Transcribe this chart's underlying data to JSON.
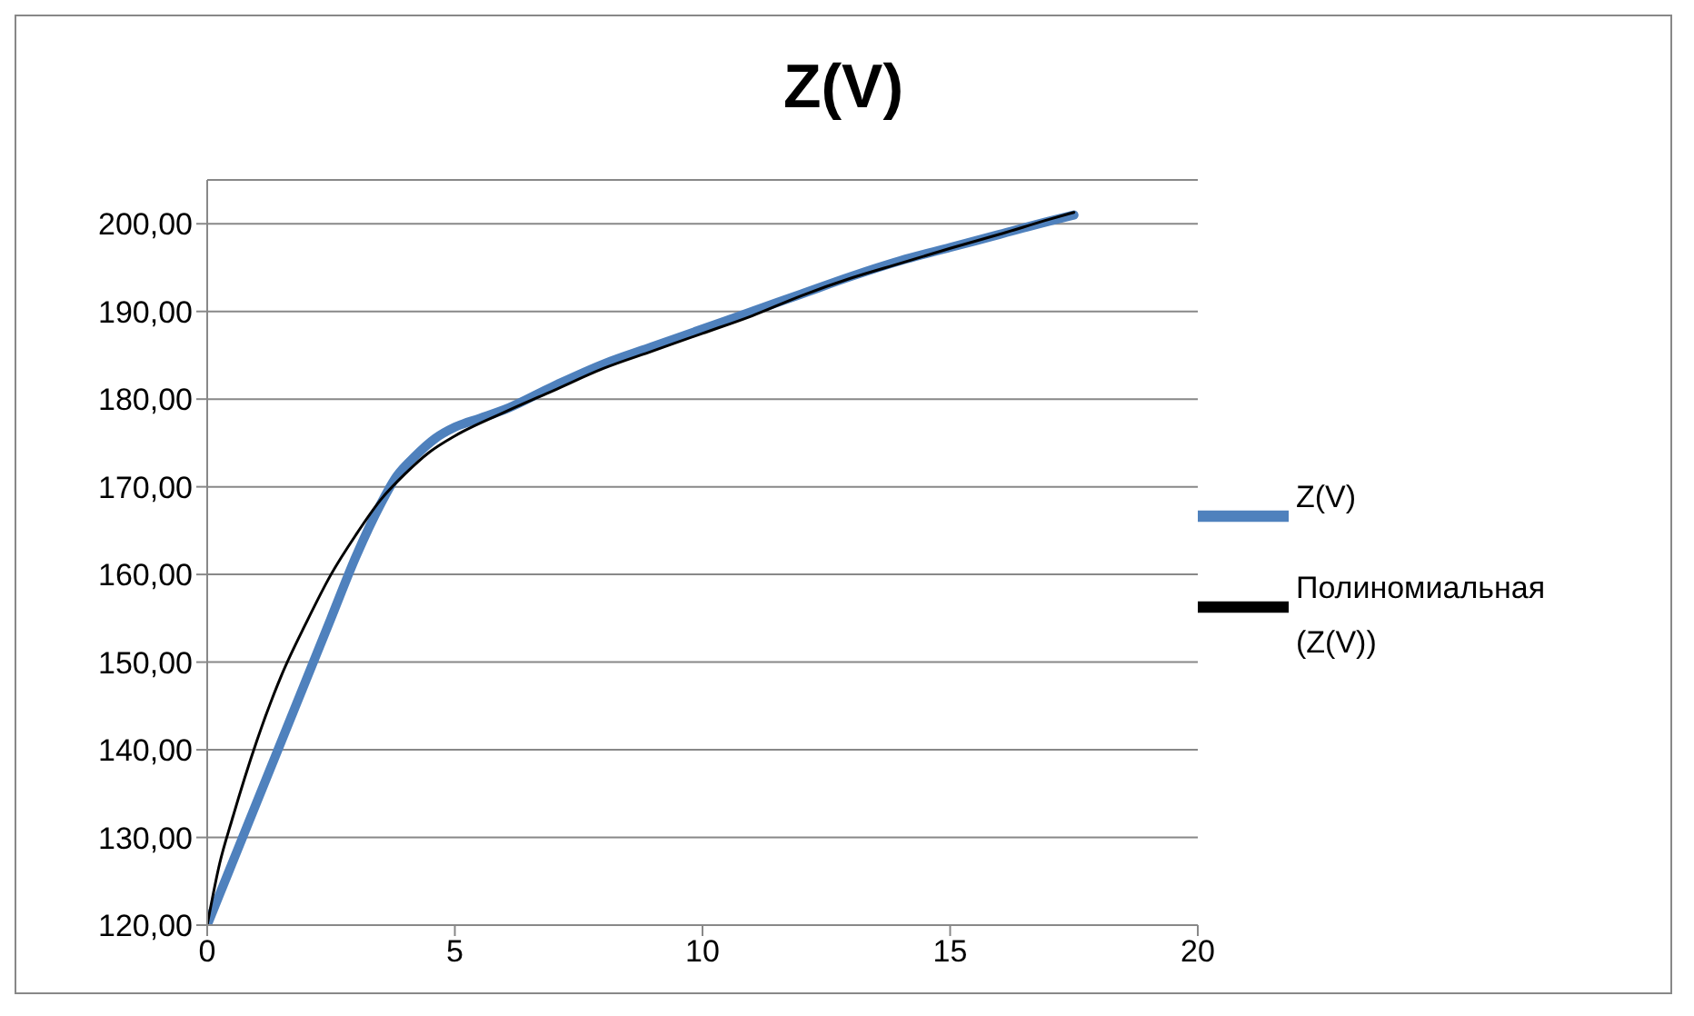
{
  "chart_data": {
    "type": "line",
    "title": "Z(V)",
    "series": [
      {
        "name": "Z(V)",
        "color": "#4f81bd",
        "x": [
          0,
          0.5,
          1,
          1.5,
          2,
          2.5,
          3,
          3.5,
          3.8,
          4.2,
          4.6,
          5,
          5.5,
          6,
          7,
          8,
          9,
          10,
          11,
          12,
          13,
          14,
          15,
          16,
          17,
          17.5
        ],
        "values": [
          120,
          127,
          134,
          141,
          148,
          155,
          162,
          168,
          171,
          173.5,
          175.5,
          176.8,
          177.8,
          178.8,
          181.5,
          184,
          186,
          188,
          190,
          192,
          194,
          195.8,
          197.3,
          198.8,
          200.3,
          201
        ]
      },
      {
        "name": "Полиномиальная (Z(V))",
        "color": "#000000",
        "line_style": "solid",
        "x": [
          0,
          0.25,
          0.5,
          1,
          1.5,
          2,
          2.5,
          3,
          3.5,
          4,
          4.5,
          5,
          6,
          7,
          8,
          9,
          10,
          11,
          12,
          13,
          14,
          15,
          16,
          17,
          17.5
        ],
        "values": [
          120,
          127,
          132,
          141,
          148.5,
          154.5,
          160,
          164.5,
          168.5,
          171.5,
          174,
          175.8,
          178.5,
          181,
          183.5,
          185.5,
          187.5,
          189.5,
          191.8,
          193.8,
          195.5,
          197.2,
          198.8,
          200.5,
          201.3
        ]
      }
    ],
    "xlim": [
      0,
      20
    ],
    "xticks": [
      0,
      5,
      10,
      15,
      20
    ],
    "ylim": [
      120,
      205
    ],
    "yticks": [
      {
        "value": 120,
        "label": "120,00"
      },
      {
        "value": 130,
        "label": "130,00"
      },
      {
        "value": 140,
        "label": "140,00"
      },
      {
        "value": 150,
        "label": "150,00"
      },
      {
        "value": 160,
        "label": "160,00"
      },
      {
        "value": 170,
        "label": "170,00"
      },
      {
        "value": 180,
        "label": "180,00"
      },
      {
        "value": 190,
        "label": "190,00"
      },
      {
        "value": 200,
        "label": "200,00"
      }
    ],
    "grid": "y",
    "legend": "right",
    "marker": "none"
  }
}
